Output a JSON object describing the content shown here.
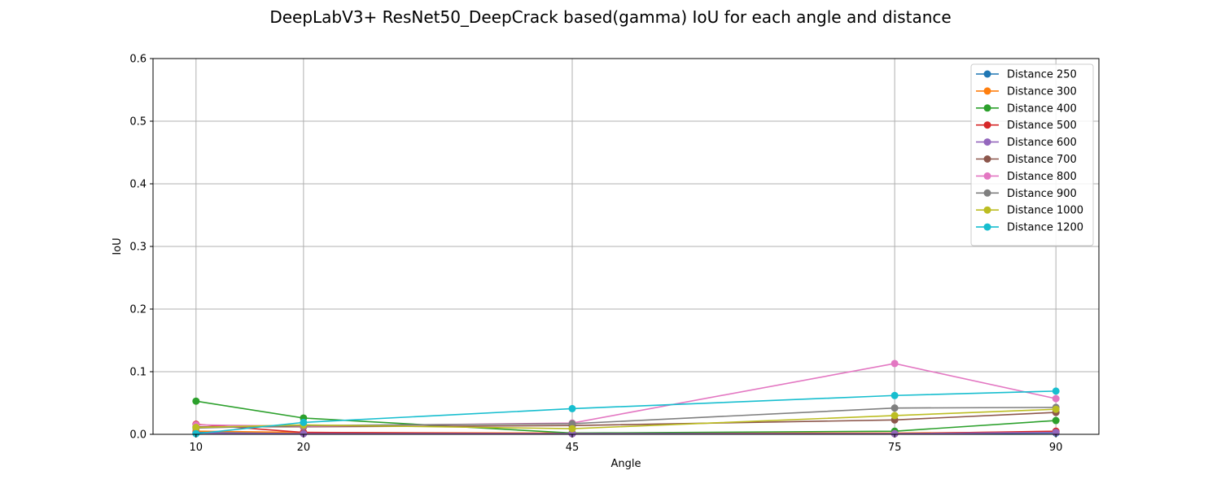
{
  "chart_data": {
    "type": "line",
    "title": "DeepLabV3+ ResNet50_DeepCrack based(gamma) IoU for each angle and distance",
    "xlabel": "Angle",
    "ylabel": "IoU",
    "x": [
      10,
      20,
      45,
      75,
      90
    ],
    "xlim": [
      6,
      94
    ],
    "ylim": [
      0,
      0.6
    ],
    "yticks": [
      0.0,
      0.1,
      0.2,
      0.3,
      0.4,
      0.5,
      0.6
    ],
    "ytick_labels": [
      "0.0",
      "0.1",
      "0.2",
      "0.3",
      "0.4",
      "0.5",
      "0.6"
    ],
    "xtick_labels": [
      "10",
      "20",
      "45",
      "75",
      "90"
    ],
    "grid": true,
    "legend_position": "top-right",
    "series": [
      {
        "name": "Distance 250",
        "color": "#1f77b4",
        "values": [
          0.003,
          0.002,
          0.001,
          0.001,
          0.002
        ]
      },
      {
        "name": "Distance 300",
        "color": "#ff7f0e",
        "values": [
          0.005,
          0.003,
          0.002,
          0.002,
          0.004
        ]
      },
      {
        "name": "Distance 400",
        "color": "#2ca02c",
        "values": [
          0.053,
          0.026,
          0.002,
          0.005,
          0.022
        ]
      },
      {
        "name": "Distance 500",
        "color": "#d62728",
        "values": [
          0.016,
          0.003,
          0.001,
          0.001,
          0.005
        ]
      },
      {
        "name": "Distance 600",
        "color": "#9467bd",
        "values": [
          0.002,
          0.001,
          0.001,
          0.001,
          0.003
        ]
      },
      {
        "name": "Distance 700",
        "color": "#8c564b",
        "values": [
          0.012,
          0.012,
          0.014,
          0.023,
          0.035
        ]
      },
      {
        "name": "Distance 800",
        "color": "#e377c2",
        "values": [
          0.015,
          0.013,
          0.018,
          0.113,
          0.057
        ]
      },
      {
        "name": "Distance 900",
        "color": "#7f7f7f",
        "values": [
          0.01,
          0.014,
          0.017,
          0.042,
          0.043
        ]
      },
      {
        "name": "Distance 1000",
        "color": "#bcbd22",
        "values": [
          0.011,
          0.015,
          0.009,
          0.03,
          0.04
        ]
      },
      {
        "name": "Distance 1200",
        "color": "#17becf",
        "values": [
          0.001,
          0.019,
          0.041,
          0.062,
          0.069
        ]
      }
    ]
  }
}
